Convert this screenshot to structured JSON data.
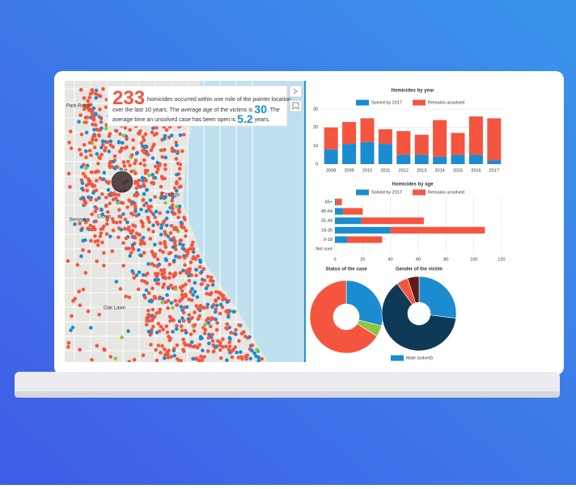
{
  "info": {
    "count": "233",
    "line1": "homicides occurred within one mile of the pointer location",
    "line2": "over the last 10 years. The average age of the victims is",
    "age": "30",
    "line2b": ". The",
    "line3": "average time an unsolved case has been open is",
    "time": "5.2",
    "line3b": "years."
  },
  "map_labels": [
    "Park Ridge",
    "Berwyn",
    "Cicero",
    "Chicago",
    "Oak Lawn"
  ],
  "chart_data": [
    {
      "type": "bar",
      "title": "Homicides by year",
      "categories": [
        "2008",
        "2009",
        "2010",
        "2011",
        "2012",
        "2013",
        "2014",
        "2015",
        "2016",
        "2017"
      ],
      "series": [
        {
          "name": "Solved by 2017",
          "color": "#1a8ccf",
          "values": [
            8,
            11,
            12,
            11,
            5,
            5,
            4,
            5,
            5,
            2
          ]
        },
        {
          "name": "Remains unsolved",
          "color": "#f4553f",
          "values": [
            12,
            12,
            13,
            8,
            13,
            11,
            20,
            12,
            21,
            23
          ]
        }
      ],
      "stacked": true,
      "ylim": [
        0,
        30
      ],
      "yticks": [
        0,
        10,
        20,
        30
      ],
      "grid": true
    },
    {
      "type": "barh",
      "title": "Homicides by age",
      "categories": [
        "65+",
        "45-64",
        "31-44",
        "18-30",
        "0-18",
        "Not sure"
      ],
      "series": [
        {
          "name": "Solved by 2017",
          "color": "#1a8ccf",
          "values": [
            1,
            6,
            19,
            40,
            9,
            0
          ]
        },
        {
          "name": "Remains unsolved",
          "color": "#f4553f",
          "values": [
            4,
            14,
            45,
            68,
            25,
            0
          ]
        }
      ],
      "stacked": true,
      "xlim": [
        0,
        120
      ],
      "xticks": [
        0,
        20,
        40,
        60,
        80,
        100,
        120
      ],
      "grid": true
    },
    {
      "type": "pie",
      "title": "Status of the case",
      "values": [
        29,
        5,
        66
      ],
      "colors": [
        "#1a8ccf",
        "#8cc63f",
        "#f4553f"
      ]
    },
    {
      "type": "pie",
      "title": "Gender of the victim",
      "categories": [
        "Male (solved)",
        null,
        null,
        null
      ],
      "values": [
        27,
        63,
        5,
        5
      ],
      "colors": [
        "#1a8ccf",
        "#0e3a57",
        "#f4553f",
        "#5e1a14"
      ]
    }
  ]
}
